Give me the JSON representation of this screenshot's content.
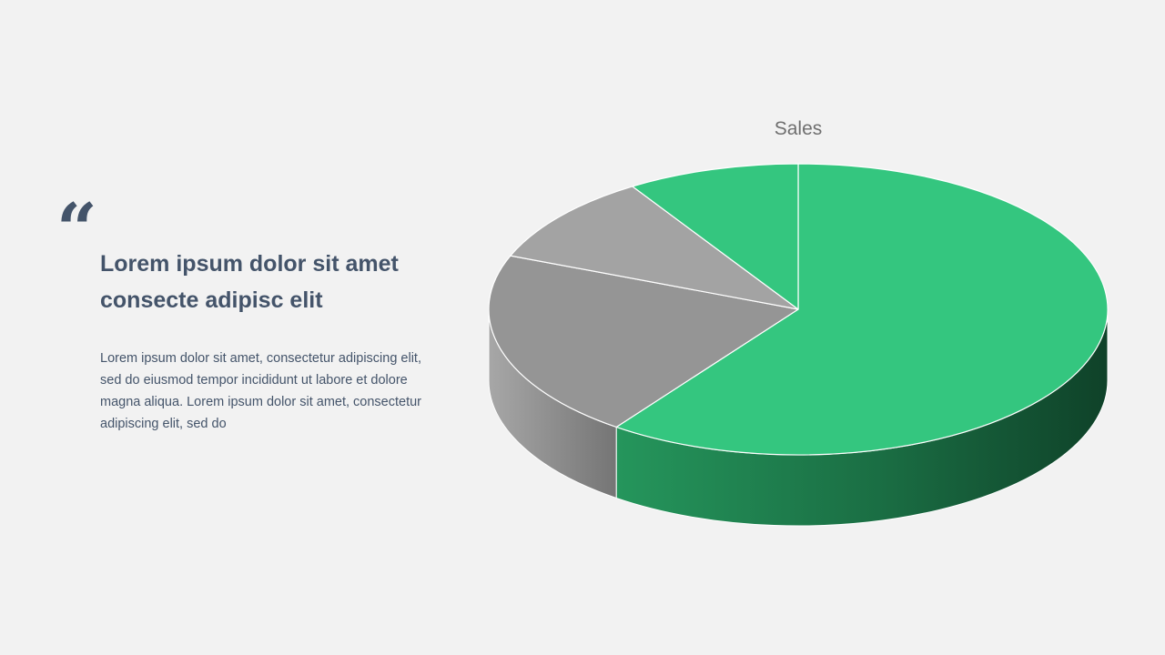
{
  "quote": {
    "mark": "“",
    "heading_lines": [
      "Lorem ipsum dolor sit amet",
      "consecte adipisc elit"
    ],
    "body_lines": [
      "Lorem ipsum dolor sit amet, consectetur adipiscing elit,",
      "sed do eiusmod tempor incididunt ut labore et dolore",
      "magna aliqua. Lorem ipsum dolor sit amet, consectetur",
      "adipiscing elit, sed do"
    ]
  },
  "colors": {
    "text": "#44546a",
    "green": "#34c67f",
    "green_dark": "#124a2f",
    "gray_mid": "#959595",
    "gray_light": "#a3a3a3"
  },
  "chart_data": {
    "type": "pie",
    "style": "3d",
    "title": "Sales",
    "legend": "none",
    "slices": [
      {
        "value": 60,
        "color": "#34c67f"
      },
      {
        "value": 21,
        "color": "#959595"
      },
      {
        "value": 10,
        "color": "#a3a3a3"
      },
      {
        "value": 9,
        "color": "#34c67f"
      }
    ]
  }
}
